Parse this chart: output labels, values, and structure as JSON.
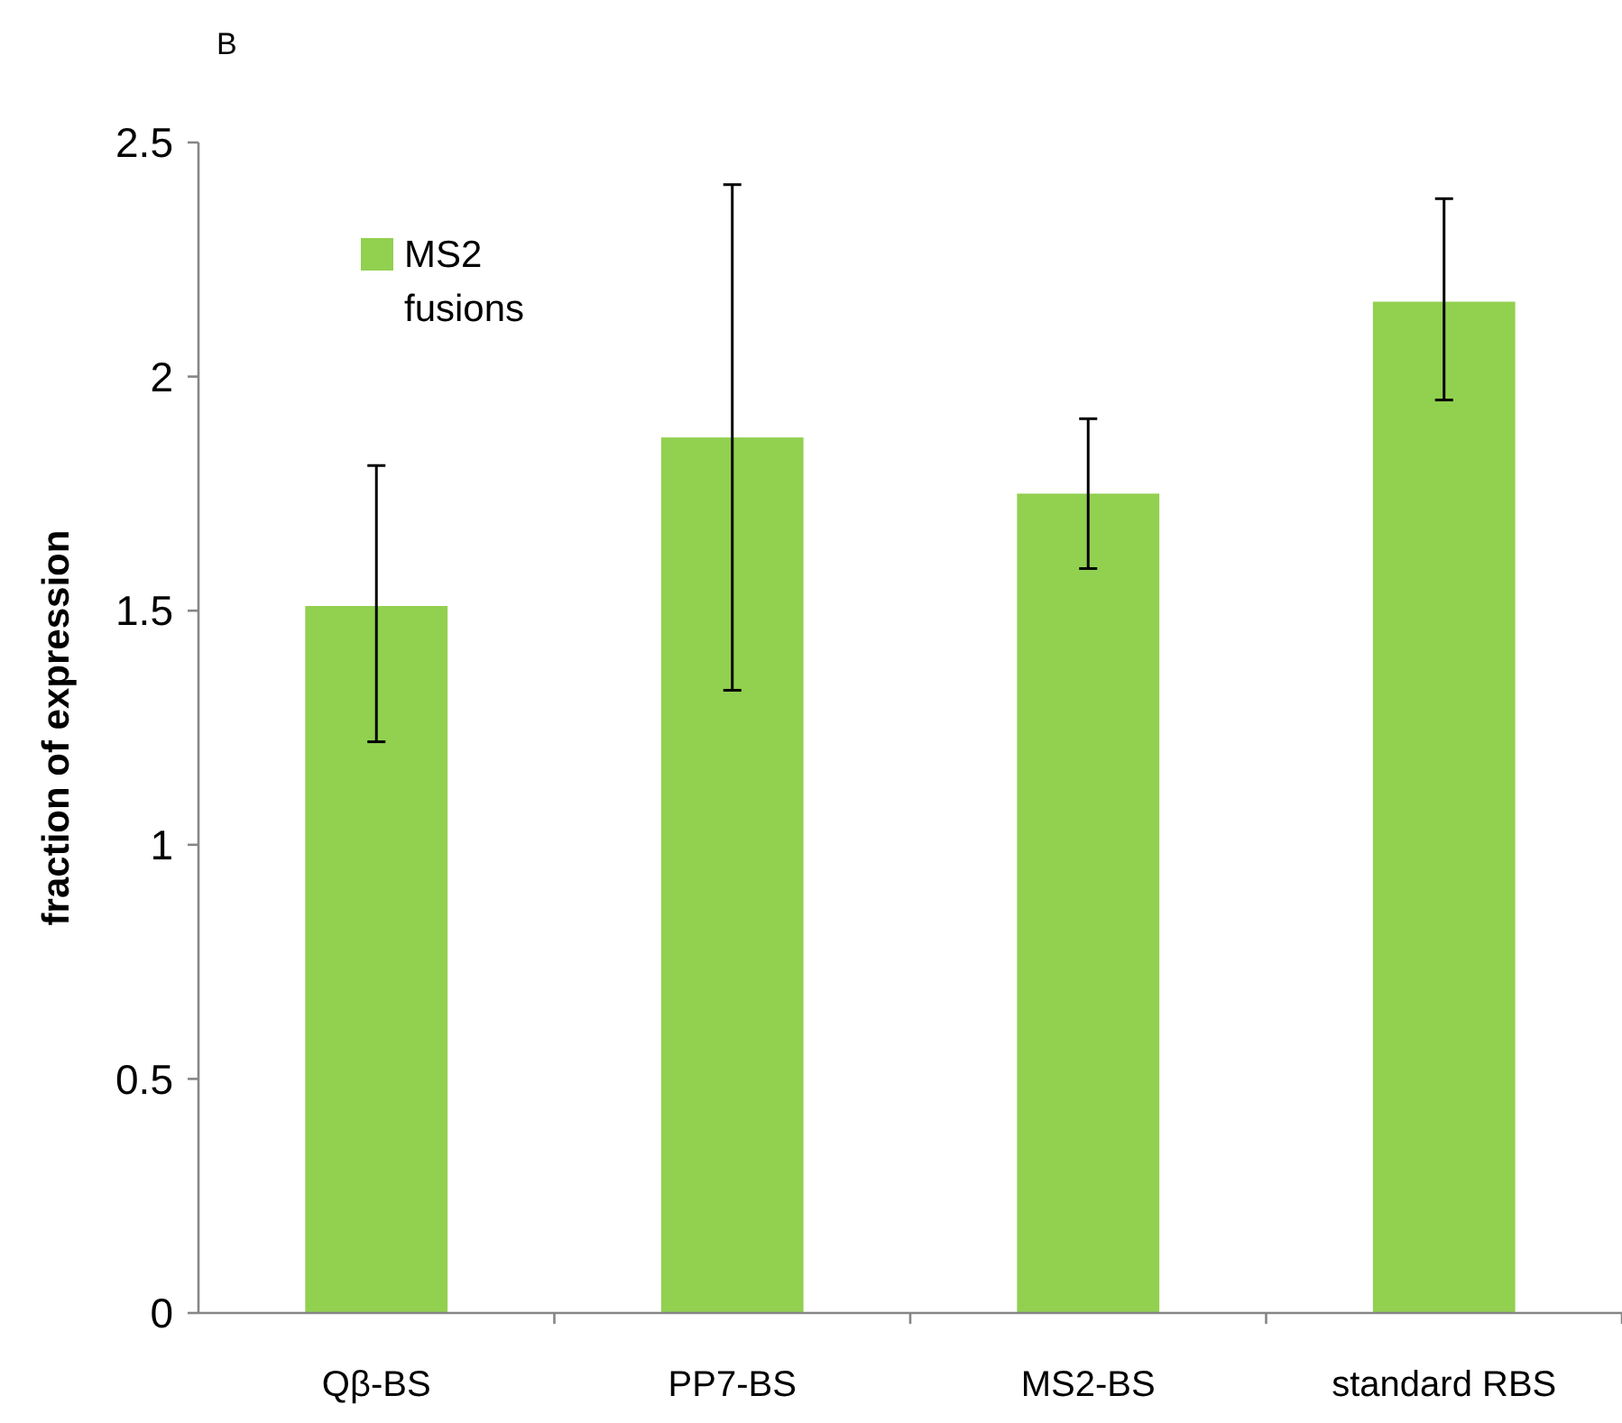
{
  "chart_data": {
    "type": "bar",
    "ylabel": "fraction of expression",
    "annotations": [
      "B"
    ],
    "categories": [
      "Qβ-BS",
      "PP7-BS",
      "MS2-BS",
      "standard RBS"
    ],
    "series": [
      {
        "name": "MS2 fusions",
        "color": "#92d050",
        "values": [
          1.51,
          1.87,
          1.75,
          2.16
        ],
        "errors": [
          [
            1.22,
            1.81
          ],
          [
            1.33,
            2.41
          ],
          [
            1.59,
            1.91
          ],
          [
            1.95,
            2.38
          ]
        ]
      }
    ],
    "ylim": [
      0,
      2.5
    ],
    "yticks": [
      0,
      0.5,
      1,
      1.5,
      2,
      2.5
    ],
    "legend": "top left",
    "grid": false
  }
}
